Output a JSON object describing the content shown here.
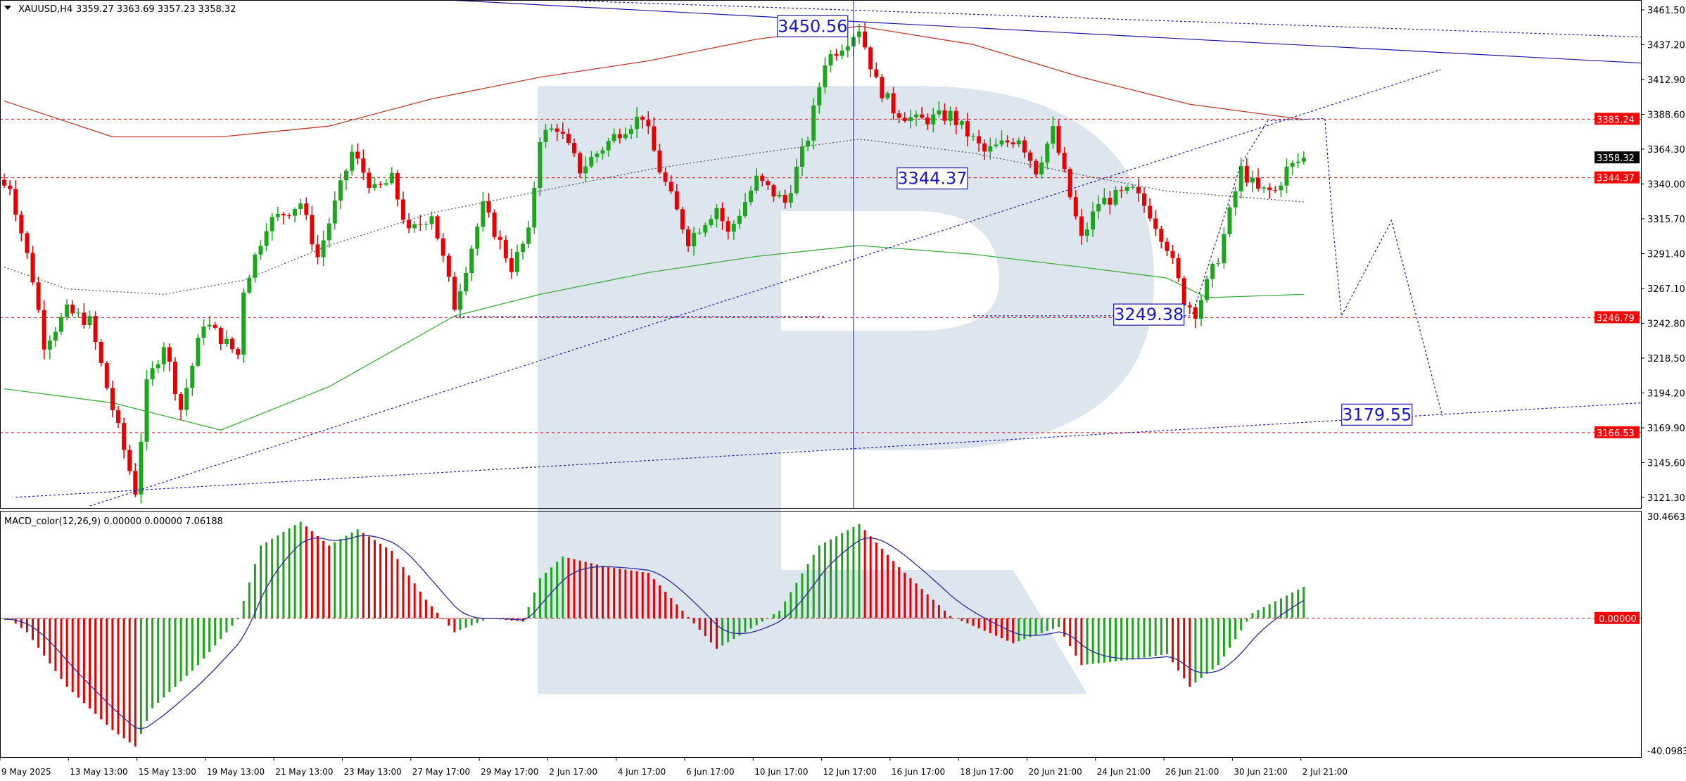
{
  "header": {
    "symbol": "XAUUSD,H4",
    "ohlc": "3359.27 3363.69 3357.23 3358.32"
  },
  "macd_header": {
    "label": "MACD_color(12,26,9) 0.00000 0.00000 7.06188"
  },
  "colors": {
    "bull": "#1ea51e",
    "bear": "#e80000",
    "ma_red": "#c0392b",
    "ma_green": "#3cae3c",
    "ma_gray": "#555555",
    "trend": "#1a1aa8",
    "level": "#d01010",
    "watermark": "#dde5ef",
    "macd_signal": "#2a2aa0"
  },
  "chart_data": [
    {
      "type": "candlestick",
      "title": "XAUUSD,H4",
      "ylim": [
        3121.3,
        3461.5
      ],
      "y_ticks": [
        "3461.50",
        "3437.20",
        "3412.90",
        "3388.60",
        "3364.30",
        "3340.00",
        "3315.70",
        "3291.40",
        "3267.10",
        "3242.80",
        "3218.50",
        "3194.20",
        "3169.90",
        "3145.60",
        "3121.30"
      ],
      "x_ticks": [
        "9 May 2025",
        "13 May 13:00",
        "15 May 13:00",
        "19 May 13:00",
        "21 May 13:00",
        "23 May 13:00",
        "27 May 17:00",
        "29 May 17:00",
        "2 Jun 17:00",
        "4 Jun 17:00",
        "6 Jun 17:00",
        "10 Jun 17:00",
        "12 Jun 17:00",
        "16 Jun 17:00",
        "18 Jun 17:00",
        "20 Jun 21:00",
        "24 Jun 21:00",
        "26 Jun 21:00",
        "30 Jun 21:00",
        "2 Jul 21:00"
      ],
      "close_path_bar_price": [
        [
          1,
          3339
        ],
        [
          5,
          3274
        ],
        [
          7,
          3229
        ],
        [
          11,
          3251
        ],
        [
          15,
          3244
        ],
        [
          19,
          3183
        ],
        [
          23,
          3126
        ],
        [
          25,
          3199
        ],
        [
          28,
          3229
        ],
        [
          31,
          3183
        ],
        [
          35,
          3244
        ],
        [
          41,
          3221
        ],
        [
          42,
          3267
        ],
        [
          46,
          3312
        ],
        [
          52,
          3327
        ],
        [
          55,
          3289
        ],
        [
          61,
          3362
        ],
        [
          65,
          3335
        ],
        [
          68,
          3343
        ],
        [
          71,
          3305
        ],
        [
          75,
          3320
        ],
        [
          79,
          3255
        ],
        [
          84,
          3324
        ],
        [
          89,
          3282
        ],
        [
          92,
          3305
        ],
        [
          94,
          3373
        ],
        [
          97,
          3380
        ],
        [
          101,
          3350
        ],
        [
          108,
          3377
        ],
        [
          112,
          3388
        ],
        [
          115,
          3350
        ],
        [
          120,
          3301
        ],
        [
          125,
          3324
        ],
        [
          127,
          3305
        ],
        [
          132,
          3343
        ],
        [
          137,
          3327
        ],
        [
          141,
          3373
        ],
        [
          144,
          3426
        ],
        [
          148,
          3441
        ],
        [
          150,
          3449
        ],
        [
          153,
          3411
        ],
        [
          156,
          3392
        ],
        [
          160,
          3384
        ],
        [
          166,
          3388
        ],
        [
          172,
          3362
        ],
        [
          178,
          3373
        ],
        [
          181,
          3350
        ],
        [
          184,
          3377
        ],
        [
          187,
          3331
        ],
        [
          189,
          3301
        ],
        [
          192,
          3327
        ],
        [
          198,
          3335
        ],
        [
          201,
          3320
        ],
        [
          204,
          3297
        ],
        [
          207,
          3259
        ],
        [
          209,
          3251
        ],
        [
          213,
          3289
        ],
        [
          217,
          3350
        ],
        [
          220,
          3335
        ],
        [
          223,
          3335
        ],
        [
          225,
          3350
        ],
        [
          228,
          3358.32
        ]
      ],
      "moving_averages": [
        {
          "color": "#c0392b",
          "style": "solid",
          "points": [
            [
              0,
              3397.9
            ],
            [
              19,
              3372.9
            ],
            [
              38,
              3372.9
            ],
            [
              57,
              3380.4
            ],
            [
              75,
              3399.4
            ],
            [
              94,
              3414.5
            ],
            [
              113,
              3425.9
            ],
            [
              132,
              3441
            ],
            [
              150,
              3450.1
            ],
            [
              170,
              3437.3
            ],
            [
              189,
              3414.5
            ],
            [
              208,
              3395.6
            ],
            [
              228,
              3385
            ]
          ]
        },
        {
          "color": "#3cae3c",
          "style": "solid",
          "points": [
            [
              0,
              3197.1
            ],
            [
              19,
              3187.3
            ],
            [
              38,
              3168.3
            ],
            [
              57,
              3198.6
            ],
            [
              79,
              3247.9
            ],
            [
              94,
              3263
            ],
            [
              113,
              3278.2
            ],
            [
              132,
              3289.5
            ],
            [
              150,
              3297.1
            ],
            [
              170,
              3291
            ],
            [
              189,
              3282
            ],
            [
              204,
              3274.4
            ],
            [
              211,
              3260.7
            ],
            [
              228,
              3263
            ]
          ]
        },
        {
          "color": "#555555",
          "style": "dotted",
          "points": [
            [
              0,
              3282
            ],
            [
              11,
              3266.8
            ],
            [
              28,
              3263
            ],
            [
              42,
              3272.9
            ],
            [
              57,
              3297.1
            ],
            [
              75,
              3319.8
            ],
            [
              94,
              3335
            ],
            [
              113,
              3350.1
            ],
            [
              132,
              3361.5
            ],
            [
              150,
              3371.3
            ],
            [
              170,
              3361.5
            ],
            [
              189,
              3346.3
            ],
            [
              204,
              3335
            ],
            [
              228,
              3327.4
            ]
          ]
        }
      ],
      "levels": [
        {
          "price": "3385.24"
        },
        {
          "price": "3344.37"
        },
        {
          "price": "3246.79"
        },
        {
          "price": "3166.53"
        }
      ],
      "current_price": "3358.32",
      "annotations": [
        {
          "text": "3450.56",
          "bar": 148,
          "price": 3450.56
        },
        {
          "text": "3344.37",
          "bar": 169,
          "price": 3344.37
        },
        {
          "text": "3249.38",
          "bar": 207,
          "price": 3249.38
        },
        {
          "text": "3179.55",
          "bar": 247,
          "price": 3179.55
        }
      ],
      "trend_lines": [
        {
          "style": "solid",
          "from": [
            64,
            3471.3
          ],
          "to": [
            288,
            3424.4
          ]
        },
        {
          "style": "dotted",
          "from": [
            74.5,
            3471.3
          ],
          "to": [
            288,
            3442.6
          ]
        },
        {
          "style": "dotted",
          "from": [
            15,
            3115.3
          ],
          "to": [
            252,
            3419.8
          ]
        },
        {
          "style": "dotted",
          "from": [
            2,
            3121.4
          ],
          "to": [
            288,
            3187.3
          ]
        },
        {
          "style": "dotted",
          "from": [
            79,
            3247.5
          ],
          "to": [
            144,
            3247.5
          ]
        },
        {
          "style": "dotted",
          "from": [
            170,
            3248
          ],
          "to": [
            208,
            3248
          ]
        }
      ],
      "vertical_line_bar": 149,
      "forecast_path": [
        [
          208.5,
          3249.4
        ],
        [
          217,
          3354
        ],
        [
          221.7,
          3384.2
        ],
        [
          231.7,
          3385.7
        ],
        [
          233,
          3316
        ],
        [
          234.6,
          3247.9
        ],
        [
          243.4,
          3314.5
        ],
        [
          252.3,
          3178.2
        ]
      ]
    },
    {
      "type": "bar",
      "title": "MACD_color(12,26,9)",
      "ylim": [
        -40.09831,
        30.46632
      ],
      "y_ticks": [
        "30.46632",
        "0.00000",
        "-40.09831"
      ],
      "histogram_path_bar_value": [
        [
          1,
          -0.3
        ],
        [
          4,
          -4.2
        ],
        [
          11,
          -20.6
        ],
        [
          19,
          -33.7
        ],
        [
          23,
          -38.6
        ],
        [
          26,
          -27.1
        ],
        [
          34,
          -14.1
        ],
        [
          41,
          -0.3
        ],
        [
          45,
          21.9
        ],
        [
          52,
          29.1
        ],
        [
          57,
          21.9
        ],
        [
          62,
          26.8
        ],
        [
          68,
          20.3
        ],
        [
          74,
          5.6
        ],
        [
          79,
          -4.2
        ],
        [
          85,
          0
        ],
        [
          91,
          -1
        ],
        [
          94,
          12.1
        ],
        [
          98,
          18.6
        ],
        [
          106,
          15.4
        ],
        [
          113,
          13.7
        ],
        [
          119,
          2.3
        ],
        [
          125,
          -9.2
        ],
        [
          130,
          -4.2
        ],
        [
          136,
          2.3
        ],
        [
          143,
          21.9
        ],
        [
          150,
          28.4
        ],
        [
          157,
          15.4
        ],
        [
          166,
          0.7
        ],
        [
          177,
          -7.5
        ],
        [
          185,
          -2.6
        ],
        [
          189,
          -14.1
        ],
        [
          198,
          -12.4
        ],
        [
          204,
          -10.8
        ],
        [
          208,
          -20.6
        ],
        [
          213,
          -14.1
        ],
        [
          219,
          1.6
        ],
        [
          228,
          9.5
        ]
      ]
    }
  ]
}
